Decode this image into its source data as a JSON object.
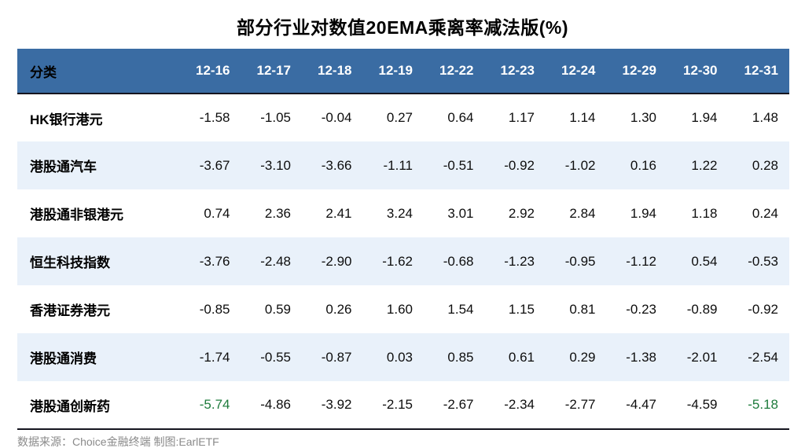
{
  "title": "部分行业对数值20EMA乘离率减法版(%)",
  "table": {
    "category_header": "分类",
    "date_columns": [
      "12-16",
      "12-17",
      "12-18",
      "12-19",
      "12-22",
      "12-23",
      "12-24",
      "12-29",
      "12-30",
      "12-31"
    ],
    "rows": [
      {
        "label": "HK银行港元",
        "values": [
          "-1.58",
          "-1.05",
          "-0.04",
          "0.27",
          "0.64",
          "1.17",
          "1.14",
          "1.30",
          "1.94",
          "1.48"
        ],
        "green_cells": []
      },
      {
        "label": "港股通汽车",
        "values": [
          "-3.67",
          "-3.10",
          "-3.66",
          "-1.11",
          "-0.51",
          "-0.92",
          "-1.02",
          "0.16",
          "1.22",
          "0.28"
        ],
        "green_cells": []
      },
      {
        "label": "港股通非银港元",
        "values": [
          "0.74",
          "2.36",
          "2.41",
          "3.24",
          "3.01",
          "2.92",
          "2.84",
          "1.94",
          "1.18",
          "0.24"
        ],
        "green_cells": []
      },
      {
        "label": "恒生科技指数",
        "values": [
          "-3.76",
          "-2.48",
          "-2.90",
          "-1.62",
          "-0.68",
          "-1.23",
          "-0.95",
          "-1.12",
          "0.54",
          "-0.53"
        ],
        "green_cells": []
      },
      {
        "label": "香港证券港元",
        "values": [
          "-0.85",
          "0.59",
          "0.26",
          "1.60",
          "1.54",
          "1.15",
          "0.81",
          "-0.23",
          "-0.89",
          "-0.92"
        ],
        "green_cells": []
      },
      {
        "label": "港股通消费",
        "values": [
          "-1.74",
          "-0.55",
          "-0.87",
          "0.03",
          "0.85",
          "0.61",
          "0.29",
          "-1.38",
          "-2.01",
          "-2.54"
        ],
        "green_cells": []
      },
      {
        "label": "港股通创新药",
        "values": [
          "-5.74",
          "-4.86",
          "-3.92",
          "-2.15",
          "-2.67",
          "-2.34",
          "-2.77",
          "-4.47",
          "-4.59",
          "-5.18"
        ],
        "green_cells": [
          0,
          9
        ]
      }
    ]
  },
  "footer": {
    "source": "数据来源：Choice金融终端 制图:EarlETF"
  },
  "colors": {
    "header_bg": "#3A6CA3",
    "row_alt_bg": "#E9F1FA",
    "dark_line": "#15151f",
    "highlight_green": "#1E7B3C",
    "footer_gray": "#8a8a8a"
  },
  "chart_data": {
    "type": "table",
    "title": "部分行业对数值20EMA乘离率减法版(%)",
    "columns": [
      "分类",
      "12-16",
      "12-17",
      "12-18",
      "12-19",
      "12-22",
      "12-23",
      "12-24",
      "12-29",
      "12-30",
      "12-31"
    ],
    "series": [
      {
        "name": "HK银行港元",
        "values": [
          -1.58,
          -1.05,
          -0.04,
          0.27,
          0.64,
          1.17,
          1.14,
          1.3,
          1.94,
          1.48
        ]
      },
      {
        "name": "港股通汽车",
        "values": [
          -3.67,
          -3.1,
          -3.66,
          -1.11,
          -0.51,
          -0.92,
          -1.02,
          0.16,
          1.22,
          0.28
        ]
      },
      {
        "name": "港股通非银港元",
        "values": [
          0.74,
          2.36,
          2.41,
          3.24,
          3.01,
          2.92,
          2.84,
          1.94,
          1.18,
          0.24
        ]
      },
      {
        "name": "恒生科技指数",
        "values": [
          -3.76,
          -2.48,
          -2.9,
          -1.62,
          -0.68,
          -1.23,
          -0.95,
          -1.12,
          0.54,
          -0.53
        ]
      },
      {
        "name": "香港证券港元",
        "values": [
          -0.85,
          0.59,
          0.26,
          1.6,
          1.54,
          1.15,
          0.81,
          -0.23,
          -0.89,
          -0.92
        ]
      },
      {
        "name": "港股通消费",
        "values": [
          -1.74,
          -0.55,
          -0.87,
          0.03,
          0.85,
          0.61,
          0.29,
          -1.38,
          -2.01,
          -2.54
        ]
      },
      {
        "name": "港股通创新药",
        "values": [
          -5.74,
          -4.86,
          -3.92,
          -2.15,
          -2.67,
          -2.34,
          -2.77,
          -4.47,
          -4.59,
          -5.18
        ]
      }
    ]
  }
}
